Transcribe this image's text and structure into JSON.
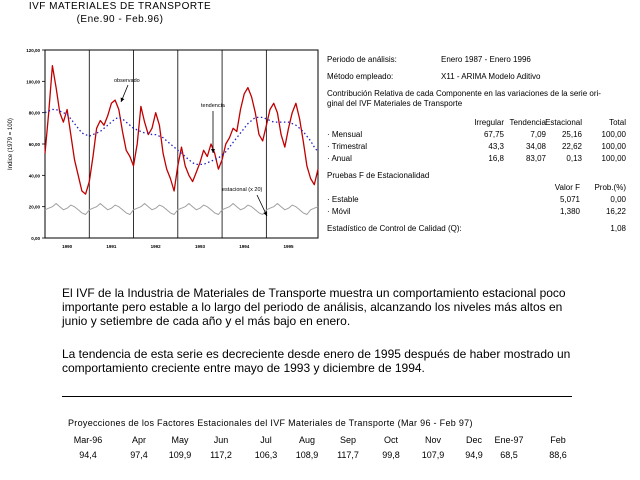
{
  "chart_data": {
    "type": "line",
    "title": "IVF MATERIALES DE TRANSPORTE",
    "subtitle": "(Ene.90 - Feb.96)",
    "ylabel": "Indice (1979 = 100)",
    "ylim": [
      0,
      120
    ],
    "yticks": [
      "0,00",
      "20,00",
      "40,00",
      "60,00",
      "80,00",
      "100,00",
      "120,00"
    ],
    "xlim": [
      0,
      74
    ],
    "x_tick_labels": [
      "1990",
      "1991",
      "1992",
      "1993",
      "1994",
      "1995"
    ],
    "annotations": [
      "observado",
      "tendencia",
      "estacional (x 20)"
    ],
    "series": [
      {
        "name": "observado",
        "color": "#c00000",
        "values": [
          54,
          80,
          110,
          96,
          80,
          74,
          82,
          66,
          50,
          40,
          30,
          28,
          36,
          52,
          70,
          75,
          72,
          78,
          86,
          88,
          82,
          68,
          56,
          52,
          46,
          60,
          84,
          74,
          66,
          70,
          80,
          72,
          54,
          44,
          38,
          30,
          46,
          58,
          46,
          40,
          36,
          42,
          48,
          56,
          52,
          60,
          54,
          44,
          50,
          60,
          64,
          70,
          68,
          82,
          92,
          96,
          90,
          80,
          66,
          62,
          72,
          82,
          86,
          80,
          66,
          58,
          70,
          80,
          86,
          76,
          62,
          46,
          38,
          34,
          44
        ]
      },
      {
        "name": "tendencia",
        "color": "#2020c0",
        "values": [
          80,
          81,
          82,
          82,
          81,
          80,
          79,
          76,
          73,
          70,
          67,
          66,
          65,
          66,
          67,
          68,
          70,
          72,
          74,
          76,
          77,
          76,
          74,
          72,
          70,
          69,
          68,
          67,
          67,
          66,
          66,
          65,
          64,
          62,
          60,
          58,
          56,
          54,
          52,
          50,
          48,
          47,
          47,
          47,
          48,
          49,
          50,
          51,
          53,
          55,
          58,
          61,
          64,
          67,
          70,
          73,
          75,
          77,
          77,
          77,
          76,
          75,
          74,
          74,
          74,
          74,
          74,
          73,
          72,
          70,
          68,
          65,
          62,
          58,
          55
        ]
      },
      {
        "name": "estacional (x 20)",
        "color": "#a0a0a0",
        "values": [
          18,
          19,
          20,
          22,
          20,
          18,
          19,
          21,
          20,
          18,
          16,
          15,
          18,
          19,
          20,
          22,
          20,
          18,
          19,
          21,
          20,
          18,
          16,
          15,
          18,
          19,
          20,
          22,
          20,
          18,
          19,
          21,
          20,
          18,
          16,
          15,
          18,
          19,
          20,
          22,
          20,
          18,
          19,
          21,
          20,
          18,
          16,
          15,
          18,
          19,
          20,
          22,
          20,
          18,
          19,
          21,
          20,
          18,
          16,
          15,
          18,
          19,
          20,
          22,
          20,
          18,
          19,
          21,
          20,
          18,
          16,
          15,
          18,
          19,
          20
        ]
      }
    ]
  },
  "info": {
    "periodo_label": "Periodo de análisis:",
    "periodo_value": "Enero 1987 - Enero 1996",
    "metodo_label": "Método empleado:",
    "metodo_value": "X11 - ARIMA Modelo Aditivo",
    "contrib_line1": "Contribución Relativa de cada Componente en las variaciones de la serie ori-",
    "contrib_line2": "ginal del IVF Materiales de Transporte",
    "contrib_headers": [
      "Irregular",
      "Tendencia",
      "Estacional",
      "Total"
    ],
    "contrib_rows": [
      {
        "label": "· Mensual",
        "values": [
          "67,75",
          "7,09",
          "25,16",
          "100,00"
        ]
      },
      {
        "label": "· Trimestral",
        "values": [
          "43,3",
          "34,08",
          "22,62",
          "100,00"
        ]
      },
      {
        "label": "· Anual",
        "values": [
          "16,8",
          "83,07",
          "0,13",
          "100,00"
        ]
      }
    ],
    "pruebas_title": "Pruebas F de Estacionalidad",
    "pruebas_headers": [
      "Valor F",
      "Prob.(%)"
    ],
    "pruebas_rows": [
      {
        "label": "· Estable",
        "values": [
          "5,071",
          "0,00"
        ]
      },
      {
        "label": "· Móvil",
        "values": [
          "1,380",
          "16,22"
        ]
      }
    ],
    "control_label": "Estadístico de Control de Calidad (Q):",
    "control_value": "1,08"
  },
  "text": {
    "para1": "El IVF de la Industria de Materiales de Transporte muestra un comportamiento estacional poco importante pero estable a lo largo del periodo de análisis, alcanzando los niveles  más altos en junio y setiembre de cada año y el más bajo en enero.",
    "para2": "La tendencia de esta serie es decreciente desde enero de 1995 después de haber mostrado un comportamiento creciente entre mayo de 1993 y diciembre de 1994."
  },
  "projections": {
    "title": "Proyecciones de los Factores Estacionales del IVF Materiales de Transporte (Mar 96 - Feb 97)",
    "months": [
      "Mar-96",
      "Apr",
      "May",
      "Jun",
      "Jul",
      "Aug",
      "Sep",
      "Oct",
      "Nov",
      "Dec",
      "Ene-97",
      "Feb"
    ],
    "values": [
      "94,4",
      "97,4",
      "109,9",
      "117,2",
      "106,3",
      "108,9",
      "117,7",
      "99,8",
      "107,9",
      "94,9",
      "68,5",
      "88,6"
    ]
  }
}
